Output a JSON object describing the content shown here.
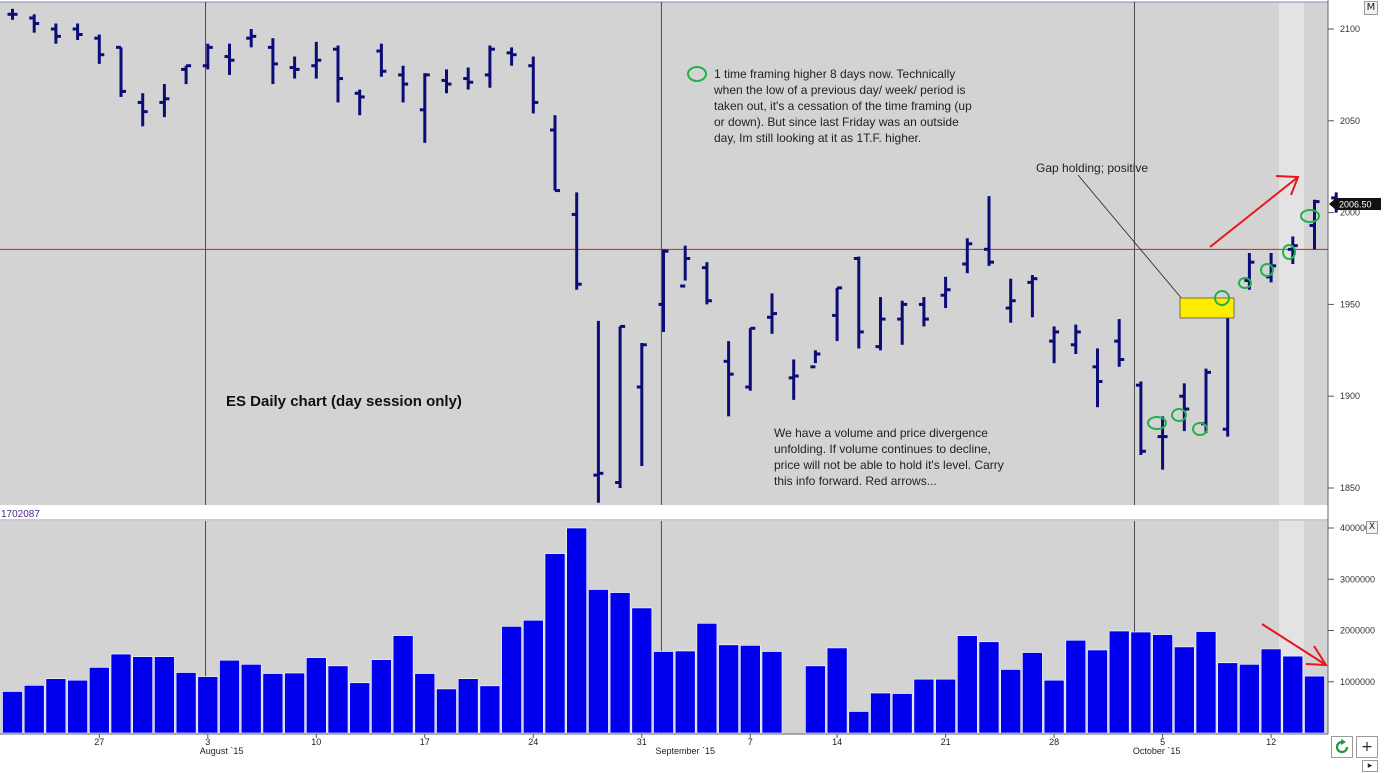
{
  "notes": {
    "title": "ES Daily chart (day session only)",
    "timeframe": "1 time framing higher 8 days now. Technically\nwhen the low of a previous day/ week/ period is\ntaken out, it's a cessation of the time framing (up\nor down). But since last Friday was an outside\nday, Im still looking at it as 1T.F. higher.",
    "gap": "Gap holding; positive",
    "divergence": "We have a volume and price divergence\nunfolding. If volume continues to decline,\nprice will not be able to hold it's level. Carry\nthis info forward.  Red arrows..."
  },
  "volume_panel_label": "1702087",
  "last_price_label": "2006.50",
  "controls": {
    "m_button": "M",
    "x_button": "X",
    "refresh_icon": "refresh-icon",
    "plus_button": "+",
    "scroll_arrow": "▸"
  },
  "colors": {
    "price_bar": "#0c0c78",
    "volume_bar": "#0000ee",
    "panel_bg": "#d3d3d3",
    "annotation": "#e8161c",
    "gap_box": "#ffec00",
    "marker": "#22b14c"
  },
  "chart_data": [
    {
      "type": "ohlc",
      "title": "ES Daily chart (day session only)",
      "ylim": [
        1840,
        2110
      ],
      "y_ticks": [
        1850,
        1900,
        1950,
        2000,
        2050,
        2100
      ],
      "x_day_labels": [
        {
          "i": 4,
          "label": "27"
        },
        {
          "i": 9,
          "label": "3"
        },
        {
          "i": 14,
          "label": "10"
        },
        {
          "i": 19,
          "label": "17"
        },
        {
          "i": 24,
          "label": "24"
        },
        {
          "i": 29,
          "label": "31"
        },
        {
          "i": 34,
          "label": "7"
        },
        {
          "i": 38,
          "label": "14"
        },
        {
          "i": 43,
          "label": "21"
        },
        {
          "i": 48,
          "label": "28"
        },
        {
          "i": 53,
          "label": "5"
        },
        {
          "i": 58,
          "label": "12"
        }
      ],
      "x_month_labels": [
        {
          "i": 9,
          "label": "August `15"
        },
        {
          "i": 30,
          "label": "September `15"
        },
        {
          "i": 52,
          "label": "October `15"
        }
      ],
      "month_dividers": [
        8.9,
        29.9,
        51.7
      ],
      "gap_line": 1980,
      "last_price": 2006.5,
      "bars": [
        [
          2108,
          2111,
          2105,
          2108
        ],
        [
          2106,
          2108,
          2098,
          2103
        ],
        [
          2100,
          2103,
          2092,
          2096
        ],
        [
          2100,
          2103,
          2094,
          2097
        ],
        [
          2095,
          2097,
          2081,
          2086
        ],
        [
          2090,
          2090,
          2063,
          2066
        ],
        [
          2060,
          2065,
          2047,
          2055
        ],
        [
          2060,
          2070,
          2052,
          2062
        ],
        [
          2078,
          2080,
          2070,
          2080
        ],
        [
          2080,
          2092,
          2078,
          2090
        ],
        [
          2085,
          2092,
          2075,
          2083
        ],
        [
          2095,
          2100,
          2090,
          2096
        ],
        [
          2090,
          2095,
          2070,
          2081
        ],
        [
          2079,
          2085,
          2073,
          2078
        ],
        [
          2080,
          2093,
          2073,
          2083
        ],
        [
          2089,
          2091,
          2060,
          2073
        ],
        [
          2065,
          2067,
          2053,
          2063
        ],
        [
          2088,
          2092,
          2074,
          2077
        ],
        [
          2075,
          2080,
          2060,
          2070
        ],
        [
          2056,
          2076,
          2038,
          2075
        ],
        [
          2072,
          2078,
          2065,
          2070
        ],
        [
          2073,
          2079,
          2067,
          2071
        ],
        [
          2075,
          2091,
          2068,
          2089
        ],
        [
          2087,
          2090,
          2080,
          2086
        ],
        [
          2080,
          2085,
          2054,
          2060
        ],
        [
          2045,
          2053,
          2012,
          2012
        ],
        [
          1999,
          2011,
          1958,
          1961
        ],
        [
          1857,
          1941,
          1842,
          1858
        ],
        [
          1853,
          1938,
          1850,
          1938
        ],
        [
          1905,
          1929,
          1862,
          1928
        ],
        [
          1950,
          1980,
          1935,
          1979
        ],
        [
          1960,
          1982,
          1963,
          1975
        ],
        [
          1970,
          1973,
          1950,
          1952
        ],
        [
          1919,
          1930,
          1889,
          1912
        ],
        [
          1905,
          1937,
          1903,
          1937
        ],
        [
          1943,
          1956,
          1934,
          1945
        ],
        [
          1910,
          1920,
          1898,
          1911
        ],
        [
          1916,
          1925,
          1918,
          1923
        ],
        [
          1944,
          1959,
          1930,
          1959
        ],
        [
          1975,
          1976,
          1926,
          1935
        ],
        [
          1927,
          1954,
          1925,
          1942
        ],
        [
          1942,
          1952,
          1928,
          1950
        ],
        [
          1950,
          1954,
          1938,
          1942
        ],
        [
          1955,
          1965,
          1948,
          1958
        ],
        [
          1972,
          1986,
          1967,
          1983
        ],
        [
          1980,
          2009,
          1971,
          1973
        ],
        [
          1948,
          1964,
          1940,
          1952
        ],
        [
          1962,
          1966,
          1943,
          1964
        ],
        [
          1930,
          1938,
          1918,
          1935
        ],
        [
          1928,
          1939,
          1923,
          1935
        ],
        [
          1916,
          1926,
          1894,
          1908
        ],
        [
          1930,
          1942,
          1916,
          1920
        ],
        [
          1906,
          1908,
          1868,
          1870
        ],
        [
          1878,
          1889,
          1860,
          1878
        ],
        [
          1900,
          1907,
          1881,
          1893
        ],
        [
          1885,
          1915,
          1880,
          1913
        ],
        [
          1882,
          1947,
          1878,
          1946
        ],
        [
          1963,
          1978,
          1958,
          1973
        ],
        [
          1965,
          1978,
          1962,
          1971
        ],
        [
          1980,
          1987,
          1972,
          1982
        ],
        [
          1993,
          2007,
          1980,
          2006
        ],
        [
          2008,
          2011,
          2000,
          2006.5
        ]
      ]
    },
    {
      "type": "bar",
      "title": "",
      "series_label": "1702087",
      "ylim": [
        0,
        4000000
      ],
      "y_ticks": [
        1000000,
        2000000,
        3000000,
        4000000
      ],
      "values": [
        810000,
        930000,
        1060000,
        1030000,
        1280000,
        1540000,
        1490000,
        1490000,
        1180000,
        1100000,
        1420000,
        1340000,
        1160000,
        1170000,
        1470000,
        1310000,
        980000,
        1430000,
        1900000,
        1160000,
        860000,
        1060000,
        920000,
        2080000,
        2200000,
        3500000,
        4000000,
        2800000,
        2740000,
        2440000,
        1590000,
        1600000,
        2140000,
        1720000,
        1710000,
        1590000,
        0,
        1310000,
        1660000,
        420000,
        780000,
        770000,
        1050000,
        1050000,
        1900000,
        1780000,
        1240000,
        1570000,
        1030000,
        1810000,
        1620000,
        1990000,
        1970000,
        1920000,
        1680000,
        1980000,
        1370000,
        1340000,
        1640000,
        1500000,
        1110000,
        null
      ]
    }
  ]
}
